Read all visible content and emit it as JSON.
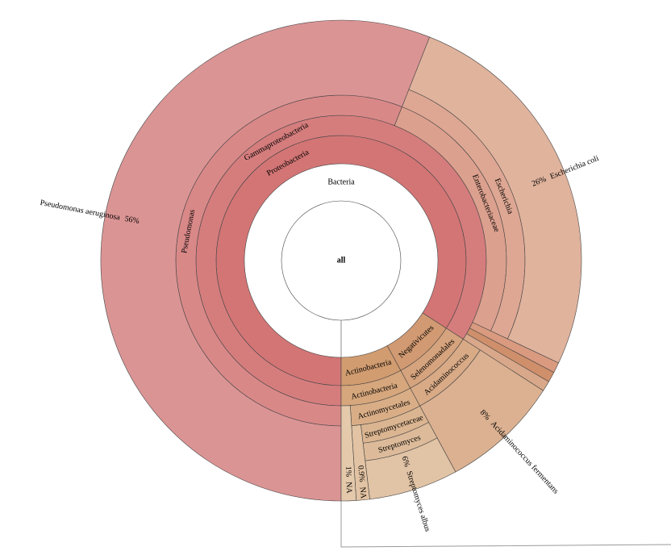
{
  "chart_data": {
    "type": "sunburst",
    "root": {
      "name": "all",
      "children": [
        {
          "name": "Bacteria",
          "color": "#cd6b6b",
          "children": [
            {
              "name": "Proteobacteria",
              "color": "#d37575",
              "children": [
                {
                  "name": "Gammaproteobacteria",
                  "color": "#d57d7d",
                  "children": [
                    {
                      "name": "Pseudomonas",
                      "color": "#d98888",
                      "children": [
                        {
                          "name": "Pseudomonas aeruginosa",
                          "value": 56,
                          "value_label": "56%",
                          "color": "#db9494"
                        }
                      ]
                    },
                    {
                      "name": "Enterobacteriaceae",
                      "color": "#dca08e",
                      "children": [
                        {
                          "name": "Escherichia",
                          "color": "#dea793",
                          "children": [
                            {
                              "name": "Escherichia coli",
                              "value": 26,
                              "value_label": "26%",
                              "color": "#e0b39d"
                            }
                          ]
                        }
                      ]
                    },
                    {
                      "name": null,
                      "value": 0.7,
                      "color": "#d99a80"
                    },
                    {
                      "name": null,
                      "value": 0.7,
                      "color": "#cf8f6b"
                    },
                    {
                      "name": null,
                      "value": 0.7,
                      "color": "#d9a88a"
                    }
                  ]
                }
              ]
            },
            {
              "name": "Negativicutes",
              "color": "#d19a72",
              "children": [
                {
                  "name": "Selenomonadales",
                  "color": "#d5a37d",
                  "children": [
                    {
                      "name": "Acidaminococcus",
                      "color": "#d8aa86",
                      "children": [
                        {
                          "name": "Acidaminococcus fermentans",
                          "value": 8,
                          "value_label": "8%",
                          "color": "#dbb191"
                        }
                      ]
                    }
                  ]
                }
              ]
            },
            {
              "name": "Actinobacteria",
              "color": "#d19c70",
              "children": [
                {
                  "name": "Actinobacteria",
                  "color": "#d6a67c",
                  "children": [
                    {
                      "name": "Actinomycetales",
                      "color": "#d9ae87",
                      "children": [
                        {
                          "name": "Streptomycetaceae",
                          "color": "#dbb591",
                          "children": [
                            {
                              "name": "Streptomyces",
                              "color": "#ddbb9a",
                              "children": [
                                {
                                  "name": "Streptomyces albus",
                                  "value": 6,
                                  "value_label": "6%",
                                  "color": "#e1c3a5"
                                }
                              ]
                            }
                          ]
                        },
                        {
                          "name": "NA",
                          "value": 0.9,
                          "value_label": "0.9%",
                          "color": "#e2c3a3"
                        }
                      ]
                    },
                    {
                      "name": "NA",
                      "value": 1,
                      "value_label": "1%",
                      "color": "#e4c9ab"
                    }
                  ]
                }
              ]
            }
          ]
        }
      ]
    }
  }
}
